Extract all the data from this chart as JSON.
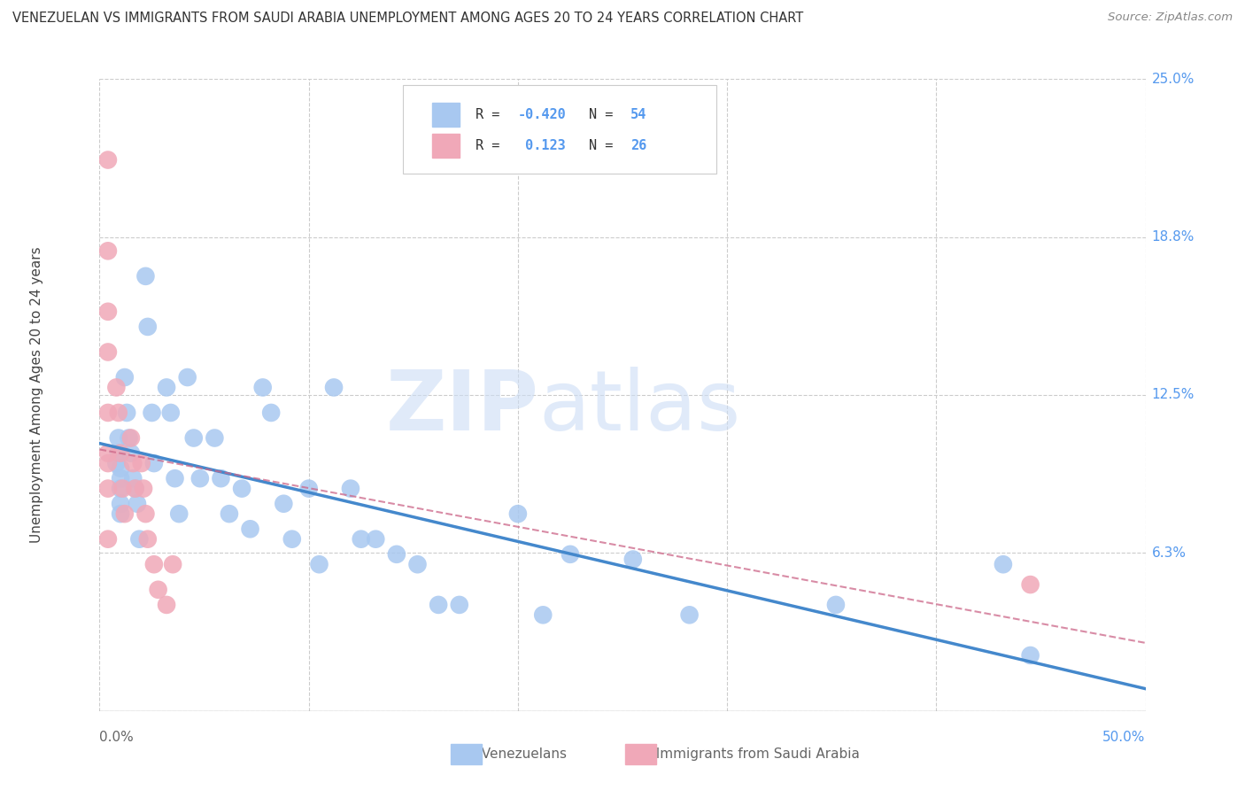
{
  "title": "VENEZUELAN VS IMMIGRANTS FROM SAUDI ARABIA UNEMPLOYMENT AMONG AGES 20 TO 24 YEARS CORRELATION CHART",
  "source": "Source: ZipAtlas.com",
  "ylabel": "Unemployment Among Ages 20 to 24 years",
  "xlim": [
    0.0,
    0.5
  ],
  "ylim": [
    0.0,
    0.25
  ],
  "ytick_positions": [
    0.0,
    0.0625,
    0.125,
    0.1875,
    0.25
  ],
  "ytick_labels": [
    "",
    "6.3%",
    "12.5%",
    "18.8%",
    "25.0%"
  ],
  "xtick_positions": [
    0.0,
    0.1,
    0.2,
    0.3,
    0.4,
    0.5
  ],
  "blue_color": "#a8c8f0",
  "pink_color": "#f0a8b8",
  "trendline_blue": "#4488cc",
  "trendline_pink": "#cc6688",
  "grid_color": "#cccccc",
  "label_color": "#5599ee",
  "venezuelans_x": [
    0.008,
    0.009,
    0.009,
    0.01,
    0.01,
    0.01,
    0.01,
    0.01,
    0.012,
    0.013,
    0.014,
    0.015,
    0.016,
    0.017,
    0.018,
    0.019,
    0.022,
    0.023,
    0.025,
    0.026,
    0.032,
    0.034,
    0.036,
    0.038,
    0.042,
    0.045,
    0.048,
    0.055,
    0.058,
    0.062,
    0.068,
    0.072,
    0.078,
    0.082,
    0.088,
    0.092,
    0.1,
    0.105,
    0.112,
    0.12,
    0.125,
    0.132,
    0.142,
    0.152,
    0.162,
    0.172,
    0.2,
    0.212,
    0.225,
    0.255,
    0.282,
    0.352,
    0.432,
    0.445
  ],
  "venezuelans_y": [
    0.098,
    0.102,
    0.108,
    0.096,
    0.088,
    0.092,
    0.082,
    0.078,
    0.132,
    0.118,
    0.108,
    0.102,
    0.092,
    0.088,
    0.082,
    0.068,
    0.172,
    0.152,
    0.118,
    0.098,
    0.128,
    0.118,
    0.092,
    0.078,
    0.132,
    0.108,
    0.092,
    0.108,
    0.092,
    0.078,
    0.088,
    0.072,
    0.128,
    0.118,
    0.082,
    0.068,
    0.088,
    0.058,
    0.128,
    0.088,
    0.068,
    0.068,
    0.062,
    0.058,
    0.042,
    0.042,
    0.078,
    0.038,
    0.062,
    0.06,
    0.038,
    0.042,
    0.058,
    0.022
  ],
  "saudi_x": [
    0.004,
    0.004,
    0.004,
    0.004,
    0.004,
    0.004,
    0.004,
    0.004,
    0.004,
    0.008,
    0.009,
    0.01,
    0.011,
    0.012,
    0.015,
    0.016,
    0.017,
    0.02,
    0.021,
    0.022,
    0.023,
    0.026,
    0.028,
    0.032,
    0.035,
    0.445
  ],
  "saudi_y": [
    0.218,
    0.182,
    0.158,
    0.142,
    0.118,
    0.102,
    0.098,
    0.088,
    0.068,
    0.128,
    0.118,
    0.102,
    0.088,
    0.078,
    0.108,
    0.098,
    0.088,
    0.098,
    0.088,
    0.078,
    0.068,
    0.058,
    0.048,
    0.042,
    0.058,
    0.05
  ]
}
